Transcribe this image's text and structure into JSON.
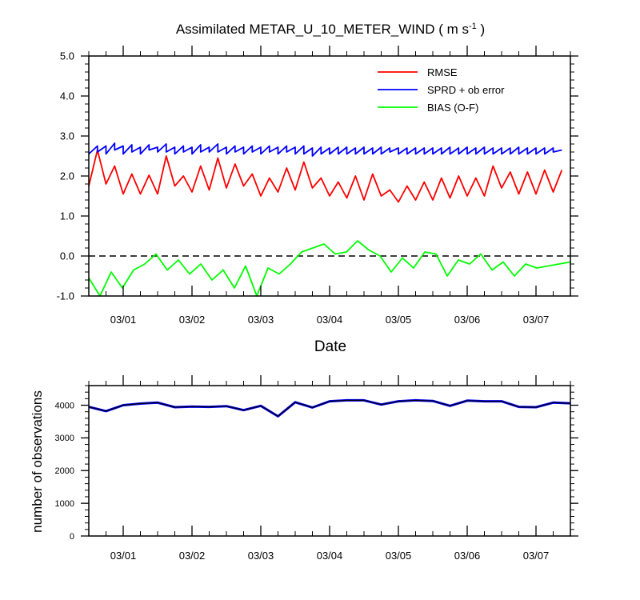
{
  "chart_data": [
    {
      "type": "line",
      "title": "Assimilated METAR_U_10_METER_WIND ( m s",
      "title_sup": "-1",
      "title_end": " )",
      "xlabel": "Date",
      "ylabel": "",
      "ylim": [
        -1.0,
        5.0
      ],
      "yticks": [
        "-1.0",
        "0.0",
        "1.0",
        "2.0",
        "3.0",
        "4.0",
        "5.0"
      ],
      "xlim": [
        -0.5,
        6.5
      ],
      "xticks": [
        "03/01",
        "03/02",
        "03/03",
        "03/04",
        "03/05",
        "03/06",
        "03/07"
      ],
      "legend_placement": "top-right",
      "zero_line": "dashed",
      "colors": {
        "rmse": "#ff0000",
        "sprd": "#0000ff",
        "bias": "#00ff00"
      },
      "series": [
        {
          "name": "RMSE",
          "color": "#ff0000",
          "sawtooth": true,
          "start": [
            1.75,
            2.65,
            1.8,
            2.25,
            1.55,
            2.05,
            1.55,
            2.02,
            1.55,
            2.5,
            1.75,
            2.0,
            1.6,
            2.25,
            1.65,
            2.45,
            1.7,
            2.3,
            1.75,
            2.05,
            1.5,
            1.95,
            1.6,
            2.2,
            1.65,
            2.35,
            1.7,
            1.95,
            1.5,
            1.85,
            1.45,
            2.0,
            1.4,
            2.05,
            1.5,
            1.65,
            1.35,
            1.75,
            1.4,
            1.85,
            1.4,
            1.95,
            1.45,
            2.0,
            1.5,
            1.95,
            1.5,
            2.25,
            1.7,
            2.1,
            1.55,
            2.1,
            1.55,
            2.15,
            1.6
          ],
          "end": [
            2.65,
            1.8,
            2.25,
            1.55,
            2.05,
            1.55,
            2.02,
            1.55,
            2.5,
            1.75,
            2.0,
            1.6,
            2.25,
            1.65,
            2.45,
            1.7,
            2.3,
            1.75,
            2.05,
            1.5,
            1.95,
            1.6,
            2.2,
            1.65,
            2.35,
            1.7,
            1.95,
            1.5,
            1.85,
            1.45,
            2.0,
            1.4,
            2.05,
            1.5,
            1.65,
            1.35,
            1.75,
            1.4,
            1.85,
            1.4,
            1.95,
            1.45,
            2.0,
            1.5,
            1.95,
            1.5,
            2.25,
            1.7,
            2.1,
            1.55,
            2.1,
            1.55,
            2.15,
            1.6,
            2.15
          ]
        },
        {
          "name": "SPRD + ob error",
          "color": "#0000ff",
          "sawtooth": true,
          "start": [
            2.55,
            2.6,
            2.55,
            2.65,
            2.55,
            2.6,
            2.55,
            2.65,
            2.6,
            2.6,
            2.55,
            2.6,
            2.55,
            2.6,
            2.6,
            2.6,
            2.55,
            2.6,
            2.55,
            2.6,
            2.55,
            2.6,
            2.55,
            2.6,
            2.55,
            2.55,
            2.5,
            2.55,
            2.55,
            2.55,
            2.55,
            2.55,
            2.55,
            2.55,
            2.55,
            2.6,
            2.55,
            2.55,
            2.55,
            2.55,
            2.55,
            2.55,
            2.55,
            2.55,
            2.55,
            2.55,
            2.55,
            2.55,
            2.55,
            2.55,
            2.55,
            2.55,
            2.55,
            2.55,
            2.6
          ],
          "end": [
            2.75,
            2.75,
            2.82,
            2.75,
            2.78,
            2.72,
            2.78,
            2.72,
            2.8,
            2.72,
            2.75,
            2.72,
            2.78,
            2.72,
            2.8,
            2.72,
            2.75,
            2.72,
            2.75,
            2.72,
            2.75,
            2.72,
            2.75,
            2.72,
            2.75,
            2.7,
            2.72,
            2.7,
            2.72,
            2.72,
            2.7,
            2.72,
            2.7,
            2.72,
            2.7,
            2.7,
            2.7,
            2.7,
            2.7,
            2.7,
            2.7,
            2.72,
            2.7,
            2.72,
            2.7,
            2.72,
            2.7,
            2.7,
            2.7,
            2.72,
            2.7,
            2.7,
            2.7,
            2.7,
            2.65
          ]
        },
        {
          "name": "BIAS (O-F)",
          "color": "#00ff00",
          "sawtooth": false,
          "values": [
            -0.55,
            -1.0,
            -0.4,
            -0.8,
            -0.35,
            -0.2,
            0.05,
            -0.35,
            -0.1,
            -0.45,
            -0.2,
            -0.6,
            -0.35,
            -0.8,
            -0.25,
            -1.0,
            -0.3,
            -0.45,
            -0.2,
            0.1,
            0.2,
            0.3,
            0.05,
            0.1,
            0.38,
            0.15,
            0.0,
            -0.4,
            -0.05,
            -0.3,
            0.1,
            0.05,
            -0.5,
            -0.1,
            -0.2,
            0.05,
            -0.35,
            -0.15,
            -0.5,
            -0.2,
            -0.3,
            -0.25,
            -0.2,
            -0.15
          ]
        }
      ]
    },
    {
      "type": "line",
      "xlabel": "",
      "ylabel": "number of observations",
      "ylim": [
        0,
        4600
      ],
      "yticks": [
        "0",
        "1000",
        "2000",
        "3000",
        "4000"
      ],
      "xlim": [
        -0.5,
        6.5
      ],
      "xticks": [
        "03/01",
        "03/02",
        "03/03",
        "03/04",
        "03/05",
        "03/06",
        "03/07"
      ],
      "series": [
        {
          "color": "#0000ff",
          "overlay_color": "#000000",
          "x": [
            -0.5,
            -0.25,
            0.0,
            0.25,
            0.5,
            0.75,
            1.0,
            1.25,
            1.5,
            1.75,
            2.0,
            2.25,
            2.5,
            2.75,
            3.0,
            3.25,
            3.5,
            3.75,
            4.0,
            4.25,
            4.5,
            4.75,
            5.0,
            5.25,
            5.5,
            5.75,
            6.0,
            6.25,
            6.5
          ],
          "values": [
            3950,
            3820,
            4000,
            4050,
            4080,
            3940,
            3960,
            3950,
            3970,
            3850,
            3980,
            3660,
            4090,
            3930,
            4120,
            4150,
            4150,
            4020,
            4120,
            4150,
            4130,
            3980,
            4140,
            4120,
            4120,
            3950,
            3940,
            4080,
            4060
          ]
        }
      ]
    }
  ]
}
